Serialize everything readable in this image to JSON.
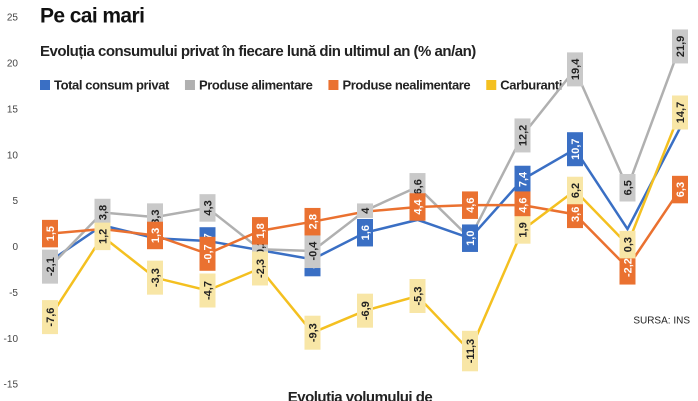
{
  "chart_data": {
    "type": "line",
    "title": "Pe cai mari",
    "subtitle": "Evoluția consumului privat în fiecare lună din ultimul an (% an/an)",
    "source": "SURSA: INS",
    "footer": "Evoluția volumului de",
    "categories": [
      null,
      null,
      null,
      null,
      null,
      null,
      null,
      null,
      null,
      null,
      null,
      null,
      null
    ],
    "ylim": [
      -15,
      25
    ],
    "yticks": [
      -15,
      -10,
      -5,
      0,
      5,
      10,
      15,
      20,
      25
    ],
    "grid": false,
    "series": [
      {
        "name": "Total consum privat",
        "color": "#3a6fc4",
        "values": [
          -1.5,
          2.4,
          1.0,
          0.7,
          -0.3,
          -1.3,
          1.6,
          3.0,
          1.0,
          7.4,
          10.7,
          2.0,
          13.0
        ],
        "value_labels": [
          null,
          null,
          null,
          "0,7",
          null,
          "-1,3",
          "1,6",
          null,
          "1,0",
          "7,4",
          "10,7",
          null,
          null
        ]
      },
      {
        "name": "Produse alimentare",
        "color": "#b0b0b0",
        "values": [
          -2.1,
          3.8,
          3.3,
          4.3,
          -0.2,
          -0.4,
          4.0,
          6.6,
          1.0,
          12.2,
          19.4,
          6.5,
          21.9
        ],
        "value_labels": [
          "-2,1",
          "3,8",
          "3,3",
          "4,3",
          "-0,2",
          "-0,4",
          "4",
          "6,6",
          null,
          "12,2",
          "19,4",
          "6,5",
          "21,9"
        ]
      },
      {
        "name": "Produse nealimentare",
        "color": "#ea7130",
        "values": [
          1.5,
          2.0,
          1.3,
          -0.7,
          1.8,
          2.8,
          3.9,
          4.4,
          4.6,
          4.6,
          3.6,
          -2.2,
          6.3
        ],
        "value_labels": [
          "1,5",
          null,
          "1,3",
          "-0,7",
          "1,8",
          "2,8",
          null,
          "4,4",
          "4,6",
          "4,6",
          "3,6",
          "-2,2",
          "6,3"
        ]
      },
      {
        "name": "Carburanți",
        "color": "#f4c020",
        "values": [
          -7.6,
          1.2,
          -3.3,
          -4.7,
          -2.3,
          -9.3,
          -6.9,
          -5.3,
          -11.3,
          1.9,
          6.2,
          0.3,
          14.7
        ],
        "value_labels": [
          "-7,6",
          "1,2",
          "-3,3",
          "-4,7",
          "-2,3",
          "-9,3",
          "-6,9",
          "-5,3",
          "-11,3",
          "1,9",
          "6,2",
          "0,3",
          "14,7"
        ]
      }
    ]
  }
}
